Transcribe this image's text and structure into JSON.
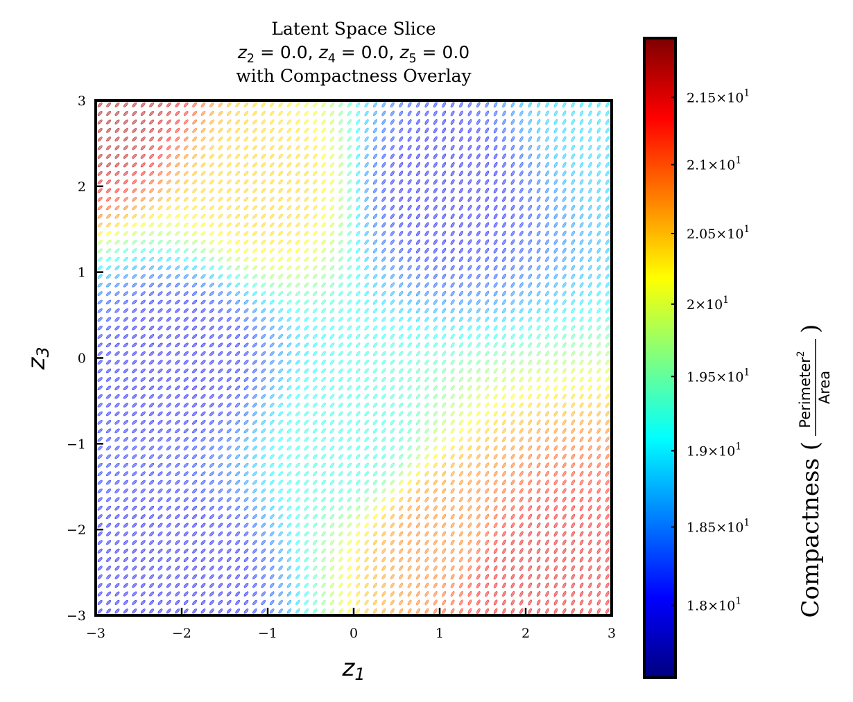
{
  "chart_data": {
    "type": "glyph_field",
    "title": "Latent Space Slice",
    "subtitle_parts": [
      {
        "var": "z",
        "sub": "2",
        "eq": " = 0.0"
      },
      {
        "var": "z",
        "sub": "4",
        "eq": " = 0.0"
      },
      {
        "var": "z",
        "sub": "5",
        "eq": " = 0.0"
      }
    ],
    "subtitle_sep": ", ",
    "subtitle2": "with Compactness Overlay",
    "xlabel": {
      "var": "z",
      "sub": "1"
    },
    "ylabel": {
      "var": "z",
      "sub": "3"
    },
    "xlim": [
      -3,
      3
    ],
    "ylim": [
      -3,
      3
    ],
    "xticks": [
      -3,
      -2,
      -1,
      0,
      1,
      2,
      3
    ],
    "yticks": [
      -3,
      -2,
      -1,
      0,
      1,
      2,
      3
    ],
    "xtick_labels": [
      "−3",
      "−2",
      "−1",
      "0",
      "1",
      "2",
      "3"
    ],
    "ytick_labels": [
      "−3",
      "−2",
      "−1",
      "0",
      "1",
      "2",
      "3"
    ],
    "grid": false,
    "glyph_shape": "ellipse",
    "glyph_opacity": 0.45,
    "grid_size": {
      "nx": 60,
      "ny": 60
    },
    "colormap": "jet",
    "colorbar": {
      "label": "Compactness (",
      "label_close": ")",
      "frac_numerator": "Perimeter",
      "frac_numerator_sup": "2",
      "frac_denominator": "Area",
      "range": [
        17.55,
        21.95
      ],
      "scale": "log",
      "ticks": [
        {
          "value": 18.0,
          "mant": "1.8"
        },
        {
          "value": 18.5,
          "mant": "1.85"
        },
        {
          "value": 19.0,
          "mant": "1.9"
        },
        {
          "value": 19.5,
          "mant": "1.95"
        },
        {
          "value": 20.0,
          "mant": "2"
        },
        {
          "value": 20.5,
          "mant": "2.05"
        },
        {
          "value": 21.0,
          "mant": "2.1"
        },
        {
          "value": 21.5,
          "mant": "2.15"
        }
      ],
      "tick_base": "10",
      "tick_exp": "1",
      "tick_times": "×",
      "colors": [
        "#00007f",
        "#0000ff",
        "#007fff",
        "#00ffff",
        "#7fff7f",
        "#ffff00",
        "#ff7f00",
        "#ff0000",
        "#7f0000"
      ]
    },
    "compactness_field": {
      "description_values": [
        {
          "z1": -3,
          "z3": 3,
          "value": 21.8
        },
        {
          "z1": -1,
          "z3": 2,
          "value": 20.4
        },
        {
          "z1": 1,
          "z3": 2,
          "value": 18.0
        },
        {
          "z1": 3,
          "z3": 3,
          "value": 18.9
        },
        {
          "z1": -2,
          "z3": 0,
          "value": 18.0
        },
        {
          "z1": 0,
          "z3": -1,
          "value": 19.2
        },
        {
          "z1": 1,
          "z3": -2,
          "value": 20.8
        },
        {
          "z1": 2,
          "z3": -2.5,
          "value": 21.5
        },
        {
          "z1": -2,
          "z3": -2.5,
          "value": 18.0
        }
      ]
    }
  }
}
